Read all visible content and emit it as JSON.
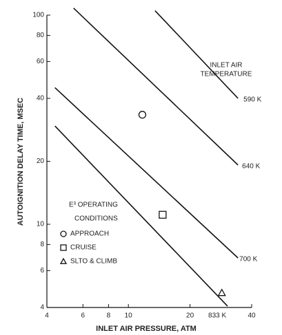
{
  "chart_data": {
    "type": "line",
    "log_x": true,
    "log_y": true,
    "xlabel": "INLET AIR PRESSURE, ATM",
    "ylabel": "AUTOIGNITION DELAY TIME, MSEC",
    "xlim": [
      4,
      40
    ],
    "ylim": [
      4,
      100
    ],
    "xticks": [
      4,
      6,
      8,
      10,
      20,
      40
    ],
    "yticks": [
      4,
      6,
      8,
      10,
      20,
      40,
      60,
      80,
      100
    ],
    "color": "#111",
    "annotation": [
      "INLET AIR",
      "TEMPERATURE"
    ],
    "series": [
      {
        "name": "590 K",
        "x": [
          13.5,
          34.3
        ],
        "values": [
          105,
          40
        ]
      },
      {
        "name": "640 K",
        "x": [
          5.4,
          34.3
        ],
        "values": [
          108,
          19.2
        ]
      },
      {
        "name": "700 K",
        "x": [
          4.38,
          34.3
        ],
        "values": [
          45,
          6.9
        ]
      },
      {
        "name": "833 K",
        "x": [
          4.38,
          30.5
        ],
        "values": [
          29.5,
          4.06
        ]
      }
    ],
    "legend_title": [
      "E³ OPERATING",
      "CONDITIONS"
    ],
    "markers": [
      {
        "name": "APPROACH",
        "shape": "circle",
        "x": [
          11.7
        ],
        "values": [
          33.4
        ]
      },
      {
        "name": "CRUISE",
        "shape": "square",
        "x": [
          14.7
        ],
        "values": [
          11.1
        ]
      },
      {
        "name": "SLTO & CLIMB",
        "shape": "triangle",
        "x": [
          28.6
        ],
        "values": [
          4.7
        ]
      }
    ]
  }
}
